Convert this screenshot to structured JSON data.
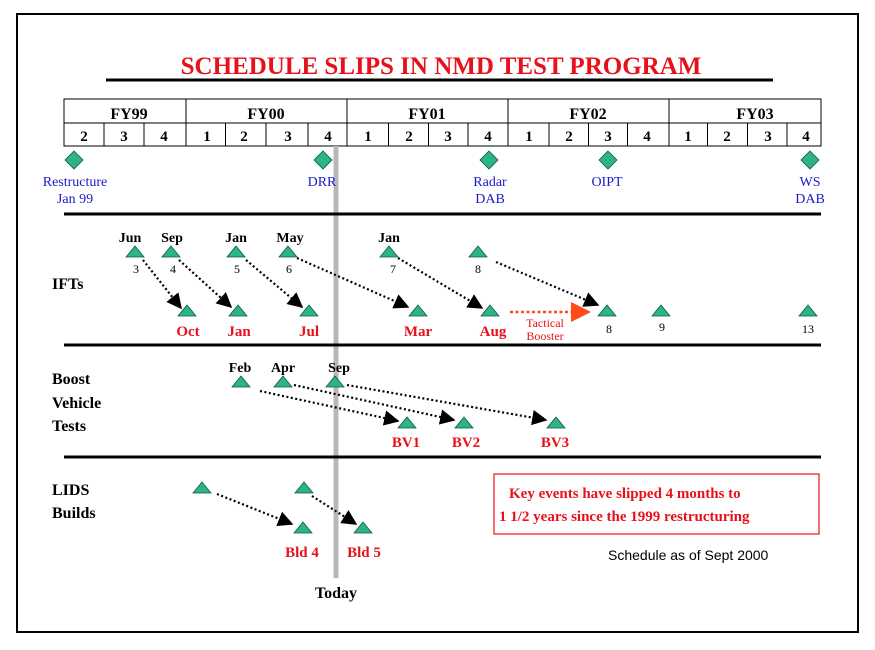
{
  "title": "SCHEDULE SLIPS IN NMD TEST PROGRAM",
  "colors": {
    "marker": "#2db38a",
    "red": "#e8101a",
    "blue": "#1a1acc",
    "today": "#b8b8b8",
    "tactical": "#ff4a1a"
  },
  "fiscal_years": [
    "FY99",
    "FY00",
    "FY01",
    "FY02",
    "FY03"
  ],
  "quarters": [
    "2",
    "3",
    "4",
    "1",
    "2",
    "3",
    "4",
    "1",
    "2",
    "3",
    "4",
    "1",
    "2",
    "3",
    "4",
    "1",
    "2",
    "3",
    "4"
  ],
  "milestones": [
    {
      "line1": "Restructure",
      "line2": "Jan 99"
    },
    {
      "line1": "DRR",
      "line2": ""
    },
    {
      "line1": "Radar",
      "line2": "DAB"
    },
    {
      "line1": "OIPT",
      "line2": ""
    },
    {
      "line1": "WS",
      "line2": "DAB"
    }
  ],
  "ifts": {
    "label": "IFTs",
    "planned": [
      {
        "month": "Jun",
        "num": "3"
      },
      {
        "month": "Sep",
        "num": "4"
      },
      {
        "month": "Jan",
        "num": "5"
      },
      {
        "month": "May",
        "num": "6"
      },
      {
        "month": "Jan",
        "num": "7"
      },
      {
        "month": "",
        "num": "8"
      }
    ],
    "actual": [
      {
        "month": "Oct",
        "num": ""
      },
      {
        "month": "Jan",
        "num": ""
      },
      {
        "month": "Jul",
        "num": ""
      },
      {
        "month": "Mar",
        "num": ""
      },
      {
        "month": "Aug",
        "num": ""
      },
      {
        "month": "",
        "num": "8"
      },
      {
        "month": "",
        "num": "9"
      },
      {
        "month": "",
        "num": "13"
      }
    ],
    "tactical_line1": "Tactical",
    "tactical_line2": "Booster"
  },
  "boost": {
    "label1": "Boost",
    "label2": "Vehicle",
    "label3": "Tests",
    "planned": [
      "Feb",
      "Apr",
      "Sep"
    ],
    "actual": [
      "BV1",
      "BV2",
      "BV3"
    ]
  },
  "lids": {
    "label1": "LIDS",
    "label2": "Builds",
    "actual": [
      "Bld 4",
      "Bld 5"
    ]
  },
  "key_box": {
    "line1": "Key  events have slipped 4 months to",
    "line2": "1 1/2 years since the 1999 restructuring"
  },
  "schedule_note": "Schedule as of Sept 2000",
  "today_label": "Today"
}
